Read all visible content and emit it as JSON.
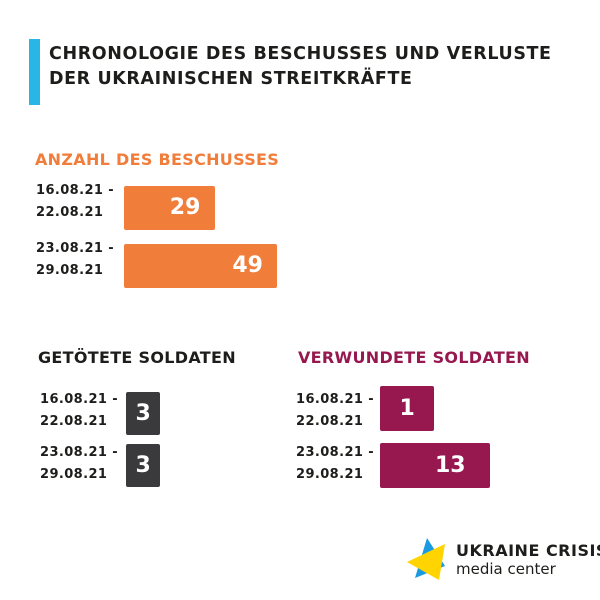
{
  "title": "Chronologie des Beschusses und Verluste der ukrainischen Streitkräfte",
  "colors": {
    "accent": "#29b6e6",
    "orange": "#f07d3a",
    "dark": "#3a3a3d",
    "wine": "#96184f"
  },
  "chart_data": [
    {
      "type": "bar",
      "title": "Anzahl des Beschusses",
      "categories": [
        "16.08.21 -\n22.08.21",
        "23.08.21 -\n29.08.21"
      ],
      "values": [
        29,
        49
      ],
      "color": "#f07d3a"
    },
    {
      "type": "bar",
      "title": "Getötete Soldaten",
      "categories": [
        "16.08.21 -\n22.08.21",
        "23.08.21 -\n29.08.21"
      ],
      "values": [
        3,
        3
      ],
      "color": "#3a3a3d"
    },
    {
      "type": "bar",
      "title": "Verwundete Soldaten",
      "categories": [
        "16.08.21 -\n22.08.21",
        "23.08.21 -\n29.08.21"
      ],
      "values": [
        1,
        13
      ],
      "color": "#96184f"
    }
  ],
  "logo": {
    "line1": "UKRAINE CRISIS",
    "line2": "media center",
    "icon": "ukraine-flag-triangles-icon"
  }
}
